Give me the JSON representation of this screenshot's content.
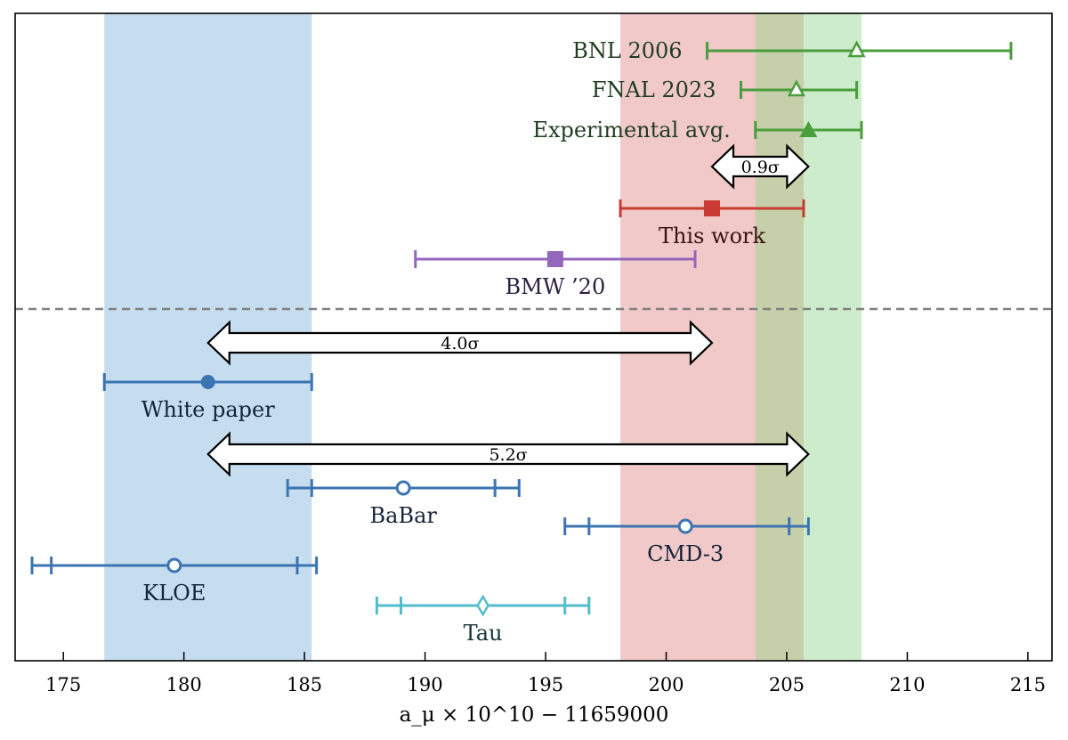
{
  "chart_data": {
    "type": "errorbar",
    "title": "",
    "xlabel": "a_μ × 10^10 − 11659000",
    "xlabel_parts": {
      "base": "a",
      "sub": "μ",
      "times": " × 10",
      "sup": "10",
      "rest": " − 11659000"
    },
    "ylabel": "",
    "xlim": [
      173.0,
      216.0
    ],
    "xticks": [
      175,
      180,
      185,
      190,
      195,
      200,
      205,
      210,
      215
    ],
    "grid": false,
    "bands": [
      {
        "color": "#c6ddf0",
        "range": [
          176.7,
          185.3
        ]
      },
      {
        "color": "#f0c9c8",
        "range": [
          198.1,
          205.7
        ]
      },
      {
        "color": "#cdeccb",
        "range": [
          203.7,
          208.1
        ]
      }
    ],
    "band_overlap_color": "#c5cfa9",
    "separator": {
      "style": "dashed",
      "color": "#808080"
    },
    "points": [
      {
        "id": "bnl",
        "label": "BNL 2006",
        "value": 207.9,
        "err": [
          201.7,
          214.3
        ],
        "marker": "triangle-open",
        "color": "#4a9e3c",
        "label_color": "#1f3d1f",
        "label_pos": "left"
      },
      {
        "id": "fnal",
        "label": "FNAL 2023",
        "value": 205.4,
        "err": [
          203.1,
          207.9
        ],
        "marker": "triangle-open",
        "color": "#4a9e3c",
        "label_color": "#1f3d1f",
        "label_pos": "left"
      },
      {
        "id": "exp",
        "label": "Experimental avg.",
        "value": 205.9,
        "err": [
          203.7,
          208.1
        ],
        "marker": "triangle",
        "color": "#4a9e3c",
        "label_color": "#1f3d1f",
        "label_pos": "left"
      },
      {
        "id": "thiswork",
        "label": "This work",
        "value": 201.9,
        "err": [
          198.1,
          205.7
        ],
        "marker": "square",
        "color": "#c93a31",
        "label_color": "#3a1410",
        "label_pos": "below"
      },
      {
        "id": "bmw",
        "label": "BMW ’20",
        "value": 195.4,
        "err": [
          189.6,
          201.2
        ],
        "marker": "square",
        "color": "#9467bd",
        "label_color": "#2a1f3d",
        "label_pos": "below"
      },
      {
        "id": "wp",
        "label": "White paper",
        "value": 181.0,
        "err": [
          176.7,
          185.3
        ],
        "marker": "circle",
        "color": "#3b74b1",
        "label_color": "#15233a",
        "label_pos": "below"
      },
      {
        "id": "babar",
        "label": "BaBar",
        "value": 189.1,
        "err": [
          185.3,
          192.9
        ],
        "err_outer": [
          184.3,
          193.9
        ],
        "marker": "circle-open",
        "color": "#3b74b1",
        "label_color": "#15233a",
        "label_pos": "below"
      },
      {
        "id": "cmd3",
        "label": "CMD-3",
        "value": 200.8,
        "err": [
          196.8,
          205.1
        ],
        "err_outer": [
          195.8,
          205.9
        ],
        "marker": "circle-open",
        "color": "#3b74b1",
        "label_color": "#15233a",
        "label_pos": "below"
      },
      {
        "id": "kloe",
        "label": "KLOE",
        "value": 179.6,
        "err": [
          174.5,
          184.7
        ],
        "err_outer": [
          173.7,
          185.5
        ],
        "marker": "circle-open",
        "color": "#3b74b1",
        "label_color": "#15233a",
        "label_pos": "below"
      },
      {
        "id": "tau",
        "label": "Tau",
        "value": 192.4,
        "err": [
          189.0,
          195.8
        ],
        "err_outer": [
          188.0,
          196.8
        ],
        "marker": "diamond-open",
        "color": "#52bccb",
        "label_color": "#15333a",
        "label_pos": "below"
      }
    ],
    "annotations": [
      {
        "id": "sig09",
        "text": "0.9σ",
        "num": "0.9",
        "sym": "σ",
        "from": 201.9,
        "to": 205.9
      },
      {
        "id": "sig40",
        "text": "4.0σ",
        "num": "4.0",
        "sym": "σ",
        "from": 181.0,
        "to": 201.9
      },
      {
        "id": "sig52",
        "text": "5.2σ",
        "num": "5.2",
        "sym": "σ",
        "from": 181.0,
        "to": 205.9
      }
    ]
  }
}
